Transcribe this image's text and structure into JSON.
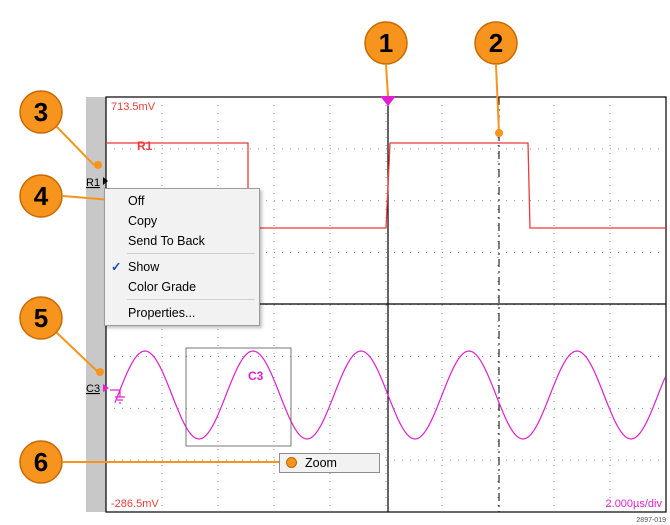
{
  "callouts": [
    "1",
    "2",
    "3",
    "4",
    "5",
    "6"
  ],
  "graticule": {
    "top_level": "713.5mV",
    "bottom_level": "-286.5mV",
    "timebase": "2.000µs/div"
  },
  "reference_label": "R1",
  "reference_handle": "R1",
  "channel_label": "C3",
  "channel_handle": "C3",
  "context_menu": {
    "items": [
      "Off",
      "Copy",
      "Send To Back",
      "Show",
      "Color Grade",
      "Properties..."
    ],
    "show_checked": true
  },
  "zoom_button": "Zoom",
  "figure_id": "2897-019",
  "colors": {
    "reference_waveform": "#ee3b3b",
    "channel_waveform": "#e020d0",
    "callout": "#f7941d",
    "scope_background": "#ffffff",
    "left_bar": "#c8c8c8"
  }
}
